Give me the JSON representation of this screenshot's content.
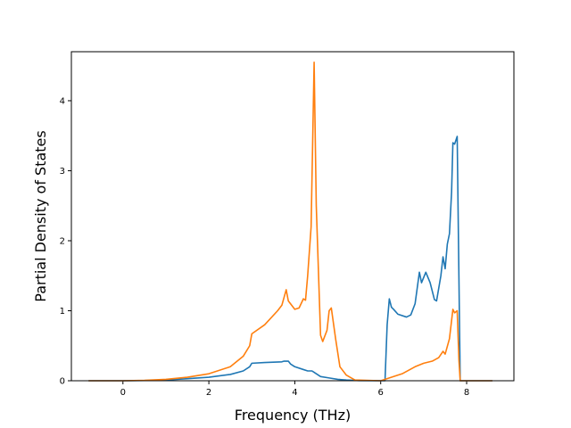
{
  "chart_data": {
    "type": "line",
    "title": "",
    "xlabel": "Frequency (THz)",
    "ylabel": "Partial Density of States",
    "xlim": [
      -1.2,
      9.1
    ],
    "ylim": [
      0,
      4.7
    ],
    "xticks": [
      0,
      2,
      4,
      6,
      8
    ],
    "yticks": [
      0,
      1,
      2,
      3,
      4
    ],
    "grid": false,
    "legend": "none",
    "series": [
      {
        "color": "#1f77b4",
        "points": [
          [
            -0.8,
            0
          ],
          [
            0,
            0
          ],
          [
            0.5,
            0.003
          ],
          [
            1.0,
            0.01
          ],
          [
            1.5,
            0.03
          ],
          [
            2.0,
            0.05
          ],
          [
            2.5,
            0.09
          ],
          [
            2.8,
            0.14
          ],
          [
            2.95,
            0.2
          ],
          [
            3.0,
            0.25
          ],
          [
            3.3,
            0.26
          ],
          [
            3.7,
            0.27
          ],
          [
            3.75,
            0.28
          ],
          [
            3.85,
            0.28
          ],
          [
            3.9,
            0.24
          ],
          [
            4.0,
            0.2
          ],
          [
            4.2,
            0.16
          ],
          [
            4.3,
            0.14
          ],
          [
            4.4,
            0.14
          ],
          [
            4.45,
            0.12
          ],
          [
            4.6,
            0.06
          ],
          [
            4.8,
            0.04
          ],
          [
            5.0,
            0.02
          ],
          [
            5.2,
            0.01
          ],
          [
            5.5,
            0.002
          ],
          [
            6.1,
            0.0
          ],
          [
            6.15,
            0.8
          ],
          [
            6.2,
            1.17
          ],
          [
            6.25,
            1.05
          ],
          [
            6.3,
            1.02
          ],
          [
            6.4,
            0.95
          ],
          [
            6.6,
            0.91
          ],
          [
            6.7,
            0.94
          ],
          [
            6.8,
            1.1
          ],
          [
            6.9,
            1.55
          ],
          [
            6.95,
            1.4
          ],
          [
            7.05,
            1.55
          ],
          [
            7.15,
            1.4
          ],
          [
            7.25,
            1.16
          ],
          [
            7.3,
            1.14
          ],
          [
            7.4,
            1.5
          ],
          [
            7.45,
            1.77
          ],
          [
            7.5,
            1.6
          ],
          [
            7.55,
            1.95
          ],
          [
            7.6,
            2.1
          ],
          [
            7.65,
            2.7
          ],
          [
            7.68,
            3.4
          ],
          [
            7.72,
            3.38
          ],
          [
            7.78,
            3.49
          ],
          [
            7.82,
            1.5
          ],
          [
            7.85,
            0.0
          ],
          [
            8.6,
            0
          ]
        ]
      },
      {
        "color": "#ff7f0e",
        "points": [
          [
            -0.8,
            0
          ],
          [
            0,
            0
          ],
          [
            0.5,
            0.005
          ],
          [
            1.0,
            0.02
          ],
          [
            1.5,
            0.05
          ],
          [
            2.0,
            0.1
          ],
          [
            2.5,
            0.2
          ],
          [
            2.8,
            0.35
          ],
          [
            2.95,
            0.5
          ],
          [
            3.0,
            0.67
          ],
          [
            3.3,
            0.8
          ],
          [
            3.6,
            1.0
          ],
          [
            3.7,
            1.08
          ],
          [
            3.8,
            1.3
          ],
          [
            3.85,
            1.14
          ],
          [
            4.0,
            1.02
          ],
          [
            4.1,
            1.04
          ],
          [
            4.2,
            1.17
          ],
          [
            4.25,
            1.15
          ],
          [
            4.3,
            1.5
          ],
          [
            4.38,
            2.2
          ],
          [
            4.45,
            4.55
          ],
          [
            4.5,
            2.5
          ],
          [
            4.6,
            0.65
          ],
          [
            4.65,
            0.56
          ],
          [
            4.75,
            0.72
          ],
          [
            4.8,
            1.0
          ],
          [
            4.85,
            1.04
          ],
          [
            4.95,
            0.6
          ],
          [
            5.05,
            0.2
          ],
          [
            5.2,
            0.08
          ],
          [
            5.4,
            0.01
          ],
          [
            6.0,
            0.0
          ],
          [
            6.5,
            0.1
          ],
          [
            6.8,
            0.2
          ],
          [
            7.0,
            0.25
          ],
          [
            7.2,
            0.28
          ],
          [
            7.35,
            0.33
          ],
          [
            7.45,
            0.42
          ],
          [
            7.5,
            0.38
          ],
          [
            7.6,
            0.6
          ],
          [
            7.68,
            1.02
          ],
          [
            7.72,
            0.97
          ],
          [
            7.78,
            1.0
          ],
          [
            7.82,
            0.3
          ],
          [
            7.85,
            0.0
          ],
          [
            8.6,
            0
          ]
        ]
      }
    ]
  }
}
